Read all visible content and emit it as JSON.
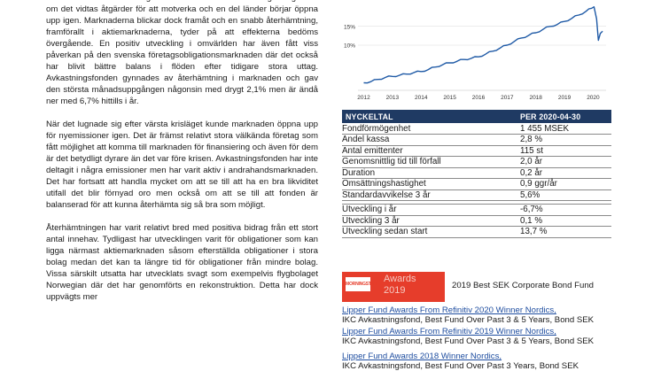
{
  "text": {
    "paragraphs": [
      "den ekonomiska utvecklingen runt om i världen blir väldigt svag även om det vidtas åtgärder för att motverka och en del länder börjar öppna upp igen. Marknaderna blickar dock framåt och en snabb återhämtning, framförallt i aktiemarknaderna, tyder på att effekterna bedöms övergående. En positiv utveckling i omvärlden har även fått viss påverkan på den svenska företagsobligationsmarknaden där det också har blivit bättre balans   i flöden efter tidigare stora uttag. Avkastningsfonden gynnades av återhämtning i marknaden och gav den största månadsuppgången någonsin med drygt 2,1% men är ändå ner med 6,7% hittills i år.",
      "När det lugnade sig efter värsta krisläget kunde marknaden öppna upp för nyemissioner igen. Det är främst relativt stora välkända företag som fått möjlighet att komma till marknaden för finansiering och även för dem är det betydligt dyrare än det var före krisen. Avkastningsfonden har inte deltagit i några emissioner men har varit aktiv i andrahandsmarknaden. Det har fortsatt att handla mycket om att se till att ha en bra likviditet utifall det blir förnyad oro men också om att se till att fonden är balanserad för att kunna återhämta sig så bra som möjligt.",
      "Återhämtningen har varit relativt bred med positiva bidrag från ett stort antal innehav. Tydligast har utvecklingen varit för obligationer som kan ligga närmast aktiemarknaden såsom efterställda obligationer i stora bolag medan det kan ta längre tid för obligationer från mindre bolag. Vissa särskilt utsatta har utvecklats svagt som exempelvis flygbolaget Norwegian där det har genomförts en rekonstruktion. Detta har dock uppvägts mer"
    ]
  },
  "chart_data": {
    "type": "line",
    "x_ticks": [
      "2012",
      "2013",
      "2014",
      "2015",
      "2016",
      "2017",
      "2018",
      "2019",
      "2020"
    ],
    "y_ticks": [
      "10%",
      "15%"
    ],
    "ylim": [
      -2,
      22
    ],
    "color": "#1f5aa6",
    "series": [
      {
        "x": [
          2012.0,
          2012.25,
          2012.5,
          2012.75,
          2013.0,
          2013.25,
          2013.5,
          2013.75,
          2014.0,
          2014.25,
          2014.5,
          2014.75,
          2015.0,
          2015.25,
          2015.5,
          2015.75,
          2016.0,
          2016.25,
          2016.5,
          2016.75,
          2017.0,
          2017.25,
          2017.5,
          2017.75,
          2018.0,
          2018.25,
          2018.5,
          2018.75,
          2019.0,
          2019.25,
          2019.5,
          2019.75,
          2019.95,
          2020.03,
          2020.12,
          2020.18,
          2020.25,
          2020.33
        ],
        "values": [
          0.0,
          0.3,
          0.9,
          1.4,
          1.7,
          2.0,
          2.3,
          2.7,
          3.0,
          3.5,
          4.2,
          4.8,
          5.3,
          5.7,
          6.2,
          6.5,
          6.9,
          7.6,
          8.4,
          9.2,
          10.0,
          11.0,
          11.9,
          12.6,
          13.3,
          14.2,
          15.0,
          15.5,
          16.3,
          17.1,
          18.0,
          19.0,
          19.8,
          20.2,
          17.0,
          11.3,
          13.1,
          13.7
        ]
      }
    ]
  },
  "table": {
    "header": [
      "NYCKELTAL",
      "PER 2020-04-30"
    ],
    "rows": [
      [
        "Fondförmögenhet",
        "1 455 MSEK"
      ],
      [
        "Andel kassa",
        "2,8 %"
      ],
      [
        "Antal emittenter",
        "115 st"
      ],
      [
        "Genomsnittlig tid till förfall",
        "2,0 år"
      ],
      [
        "Duration",
        "0,2 år"
      ],
      [
        "Omsättningshastighet",
        "0,9 ggr/år"
      ],
      [
        "Standardavvikelse 3 år",
        "5,6%"
      ],
      [
        "Utveckling i år",
        "-6,7%"
      ],
      [
        "Utveckling 3 år",
        "0,1 %"
      ],
      [
        "Utveckling sedan start",
        "13,7 %"
      ]
    ]
  },
  "awards": {
    "logo_name": "MORNINGSTAR",
    "logo_word": "Awards",
    "logo_year": "2019",
    "morningstar_text": "2019 Best SEK Corporate Bond Fund",
    "lipper": [
      {
        "title": "Lipper Fund Awards From Refinitiv 2020 Winner Nordics,",
        "detail": "IKC Avkastningsfond, Best Fund Over Past 3 & 5 Years, Bond SEK"
      },
      {
        "title": "Lipper Fund Awards From Refinitiv 2019 Winner Nordics,",
        "detail": "IKC Avkastningsfond, Best Fund Over Past 3 & 5 Years, Bond SEK"
      },
      {
        "title": "Lipper Fund Awards 2018 Winner Nordics,",
        "detail": "IKC Avkastningsfond, Best Fund Over Past 3 Years, Bond SEK"
      }
    ]
  }
}
